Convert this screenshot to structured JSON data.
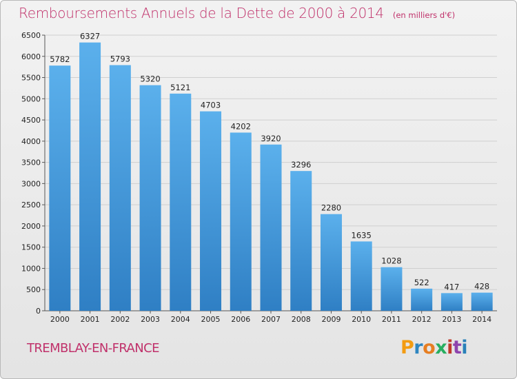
{
  "header": {
    "title": "Remboursements Annuels de la Dette de 2000 à 2014",
    "unit": "(en milliers d'€)"
  },
  "footer": {
    "city": "TREMBLAY-EN-FRANCE",
    "logo_text": "Proxiti",
    "logo_colors": [
      "#f39c12",
      "#2e86c1",
      "#e67e22",
      "#27ae60",
      "#c0392b",
      "#8e44ad",
      "#2980b9"
    ]
  },
  "colors": {
    "title": "#c0306a",
    "bar_top": "#5bb0ec",
    "bar_bottom": "#2f7fc4",
    "grid": "#cfcfcf"
  },
  "chart_data": {
    "type": "bar",
    "title": "Remboursements Annuels de la Dette de 2000 à 2014",
    "subtitle": "(en milliers d'€)",
    "xlabel": "",
    "ylabel": "",
    "categories": [
      "2000",
      "2001",
      "2002",
      "2003",
      "2004",
      "2005",
      "2006",
      "2007",
      "2008",
      "2009",
      "2010",
      "2011",
      "2012",
      "2013",
      "2014"
    ],
    "values": [
      5782,
      6327,
      5793,
      5320,
      5121,
      4703,
      4202,
      3920,
      3296,
      2280,
      1635,
      1028,
      522,
      417,
      428
    ],
    "ylim": [
      0,
      6500
    ],
    "yticks": [
      0,
      500,
      1000,
      1500,
      2000,
      2500,
      3000,
      3500,
      4000,
      4500,
      5000,
      5500,
      6000,
      6500
    ],
    "grid": true,
    "data_labels": true
  }
}
